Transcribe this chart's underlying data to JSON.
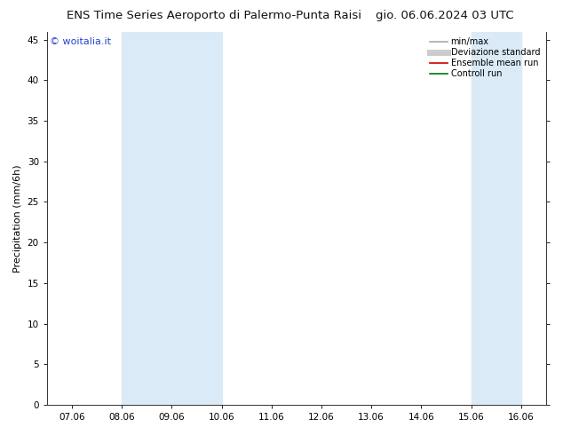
{
  "title_left": "ENS Time Series Aeroporto di Palermo-Punta Raisi",
  "title_right": "gio. 06.06.2024 03 UTC",
  "ylabel": "Precipitation (mm/6h)",
  "watermark": "© woitalia.it",
  "watermark_color": "#2244cc",
  "ylim": [
    0,
    46
  ],
  "yticks": [
    0,
    5,
    10,
    15,
    20,
    25,
    30,
    35,
    40,
    45
  ],
  "xtick_labels": [
    "07.06",
    "08.06",
    "09.06",
    "10.06",
    "11.06",
    "12.06",
    "13.06",
    "14.06",
    "15.06",
    "16.06"
  ],
  "n_xticks": 10,
  "shaded_bands": [
    {
      "xstart": 1.0,
      "xend": 3.0
    },
    {
      "xstart": 8.0,
      "xend": 9.0
    }
  ],
  "shade_color": "#daeaf7",
  "legend_items": [
    {
      "label": "min/max",
      "color": "#aaaaaa",
      "lw": 1.2
    },
    {
      "label": "Deviazione standard",
      "color": "#cccccc",
      "lw": 5
    },
    {
      "label": "Ensemble mean run",
      "color": "#cc0000",
      "lw": 1.2
    },
    {
      "label": "Controll run",
      "color": "#007700",
      "lw": 1.2
    }
  ],
  "title_fontsize": 9.5,
  "tick_fontsize": 7.5,
  "ylabel_fontsize": 8,
  "watermark_fontsize": 8,
  "legend_fontsize": 7,
  "bg_color": "#ffffff",
  "plot_bg_color": "#ffffff",
  "spine_color": "#333333"
}
